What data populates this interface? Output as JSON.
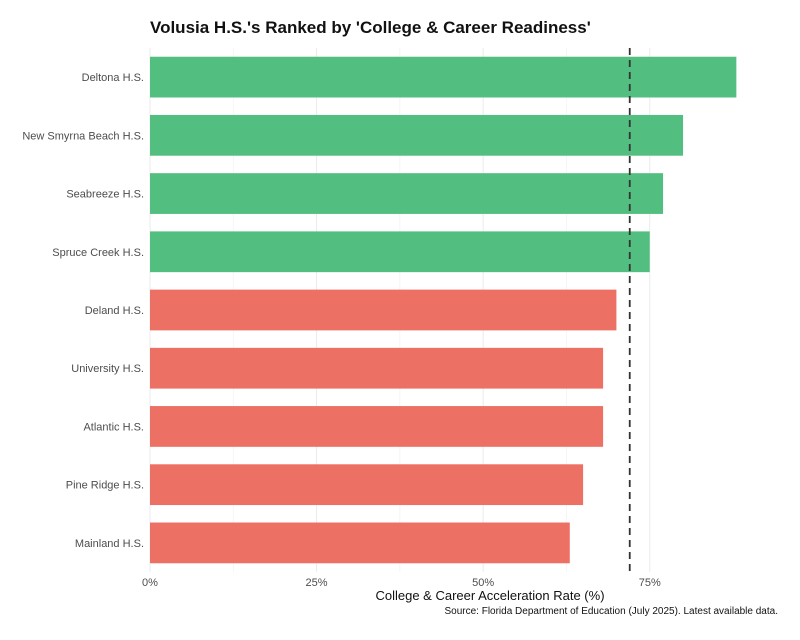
{
  "chart_data": {
    "type": "bar",
    "orientation": "horizontal",
    "title": "Volusia H.S.'s Ranked by 'College & Career Readiness'",
    "xlabel": "College & Career Acceleration Rate (%)",
    "caption": "Source: Florida Department of Education (July 2025). Latest available data.",
    "categories": [
      "Deltona H.S.",
      "New Smyrna Beach H.S.",
      "Seabreeze H.S.",
      "Spruce Creek H.S.",
      "Deland H.S.",
      "University H.S.",
      "Atlantic H.S.",
      "Pine Ridge H.S.",
      "Mainland H.S."
    ],
    "values": [
      88,
      80,
      77,
      75,
      70,
      68,
      68,
      65,
      63
    ],
    "above_reference": [
      true,
      true,
      true,
      true,
      false,
      false,
      false,
      false,
      false
    ],
    "xlim": [
      0,
      92
    ],
    "x_ticks": [
      0,
      25,
      50,
      75
    ],
    "x_tick_labels": [
      "0%",
      "25%",
      "50%",
      "75%"
    ],
    "reference_line": 72,
    "grid": true,
    "legend": "none"
  },
  "colors": {
    "above": "#52bf80",
    "below": "#ec7063",
    "reference": "#333333",
    "grid": "#ebebeb"
  }
}
